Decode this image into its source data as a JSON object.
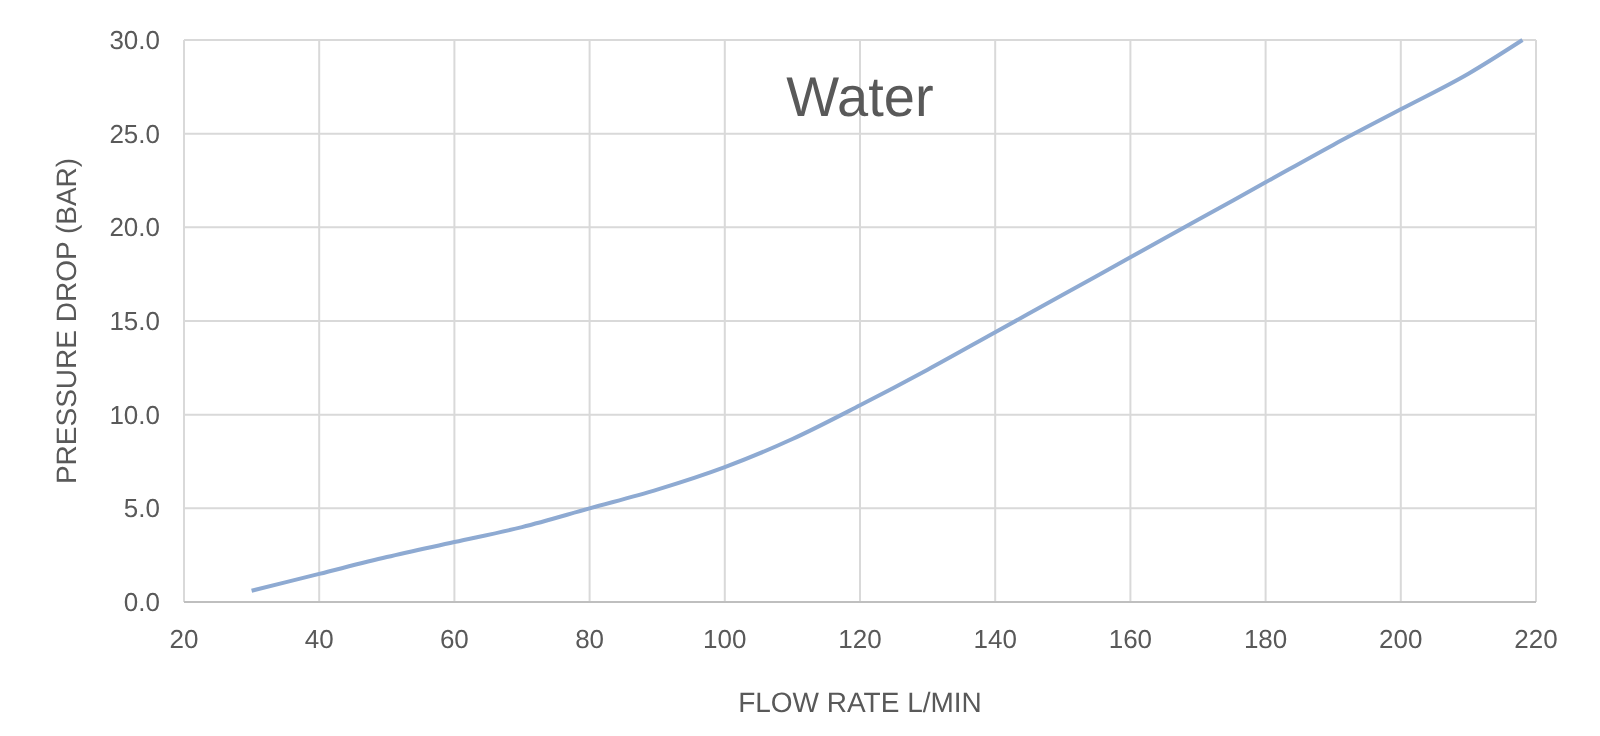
{
  "chart_data": {
    "type": "line",
    "title": "Water",
    "xlabel": "FLOW RATE L/MIN",
    "ylabel": "PRESSURE DROP (BAR)",
    "x": [
      30,
      40,
      50,
      60,
      70,
      80,
      90,
      100,
      110,
      120,
      130,
      140,
      150,
      160,
      170,
      180,
      190,
      200,
      210,
      218
    ],
    "series": [
      {
        "color": "#8eaad2",
        "values": [
          0.6,
          1.5,
          2.4,
          3.2,
          4.0,
          5.0,
          6.0,
          7.2,
          8.7,
          10.5,
          12.4,
          14.4,
          16.4,
          18.4,
          20.4,
          22.4,
          24.4,
          26.3,
          28.2,
          30.0
        ]
      }
    ],
    "xlim": [
      20,
      220
    ],
    "xticks": [
      20,
      40,
      60,
      80,
      100,
      120,
      140,
      160,
      180,
      200,
      220
    ],
    "ylim": [
      0,
      30
    ],
    "yticks": [
      {
        "value": 0,
        "label": "0.0"
      },
      {
        "value": 5,
        "label": "5.0"
      },
      {
        "value": 10,
        "label": "10.0"
      },
      {
        "value": 15,
        "label": "15.0"
      },
      {
        "value": 20,
        "label": "20.0"
      },
      {
        "value": 25,
        "label": "25.0"
      },
      {
        "value": 30,
        "label": "30.0"
      }
    ],
    "grid": true,
    "marker": "none",
    "line_style": "solid"
  }
}
